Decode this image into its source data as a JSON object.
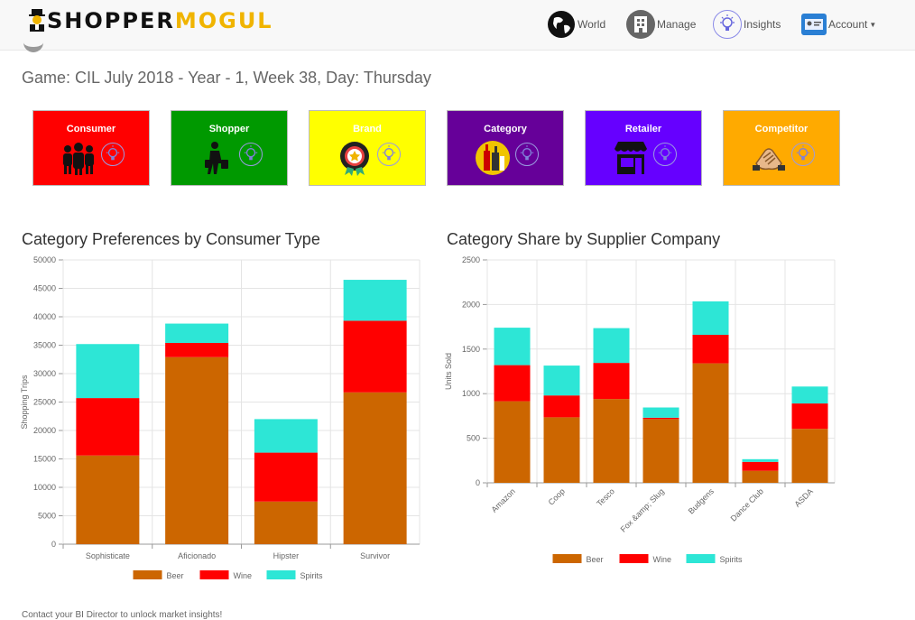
{
  "app": {
    "logo_part1": "SHOPPER",
    "logo_part2": "MOGUL"
  },
  "nav": {
    "world": "World",
    "manage": "Manage",
    "insights": "Insights",
    "account": "Account"
  },
  "game_line": "Game: CIL July 2018 - Year - 1, Week 38, Day: Thursday",
  "tiles": [
    {
      "label": "Consumer",
      "color": "#ff0000",
      "icon": "crowd-icon"
    },
    {
      "label": "Shopper",
      "color": "#009900",
      "icon": "shopper-icon"
    },
    {
      "label": "Brand",
      "color": "#ffff00",
      "icon": "rosette-icon"
    },
    {
      "label": "Category",
      "color": "#660099",
      "icon": "bottles-icon"
    },
    {
      "label": "Retailer",
      "color": "#6600ff",
      "icon": "storefront-icon"
    },
    {
      "label": "Competitor",
      "color": "#ffaa00",
      "icon": "handshake-icon"
    }
  ],
  "footer": "Contact your BI Director to unlock market insights!",
  "chart_data": [
    {
      "type": "bar",
      "stacked": true,
      "title": "Category Preferences by Consumer Type",
      "xlabel": "",
      "ylabel": "Shopping Trips",
      "ylim": [
        0,
        50000
      ],
      "ytick_step": 5000,
      "categories": [
        "Sophisticate",
        "Aficionado",
        "Hipster",
        "Survivor"
      ],
      "series": [
        {
          "name": "Beer",
          "color": "#cc6600",
          "values": [
            15600,
            32900,
            7500,
            26700
          ]
        },
        {
          "name": "Wine",
          "color": "#ff0000",
          "values": [
            10100,
            2500,
            8600,
            12600
          ]
        },
        {
          "name": "Spirits",
          "color": "#2de6d6",
          "values": [
            9500,
            3400,
            5900,
            7200
          ]
        }
      ],
      "grid": true,
      "legend": "bottom"
    },
    {
      "type": "bar",
      "stacked": true,
      "title": "Category Share by Supplier Company",
      "xlabel": "",
      "ylabel": "Units Sold",
      "ylim": [
        0,
        2500
      ],
      "ytick_step": 500,
      "categories": [
        "Amazon",
        "Coop",
        "Tesco",
        "Fox &amp; Slug",
        "Budgens",
        "Dance Club",
        "ASDA"
      ],
      "series": [
        {
          "name": "Beer",
          "color": "#cc6600",
          "values": [
            915,
            735,
            940,
            715,
            1340,
            135,
            605
          ]
        },
        {
          "name": "Wine",
          "color": "#ff0000",
          "values": [
            405,
            245,
            405,
            15,
            320,
            100,
            285
          ]
        },
        {
          "name": "Spirits",
          "color": "#2de6d6",
          "values": [
            420,
            335,
            390,
            115,
            375,
            30,
            190
          ]
        }
      ],
      "grid": true,
      "legend": "bottom"
    }
  ]
}
